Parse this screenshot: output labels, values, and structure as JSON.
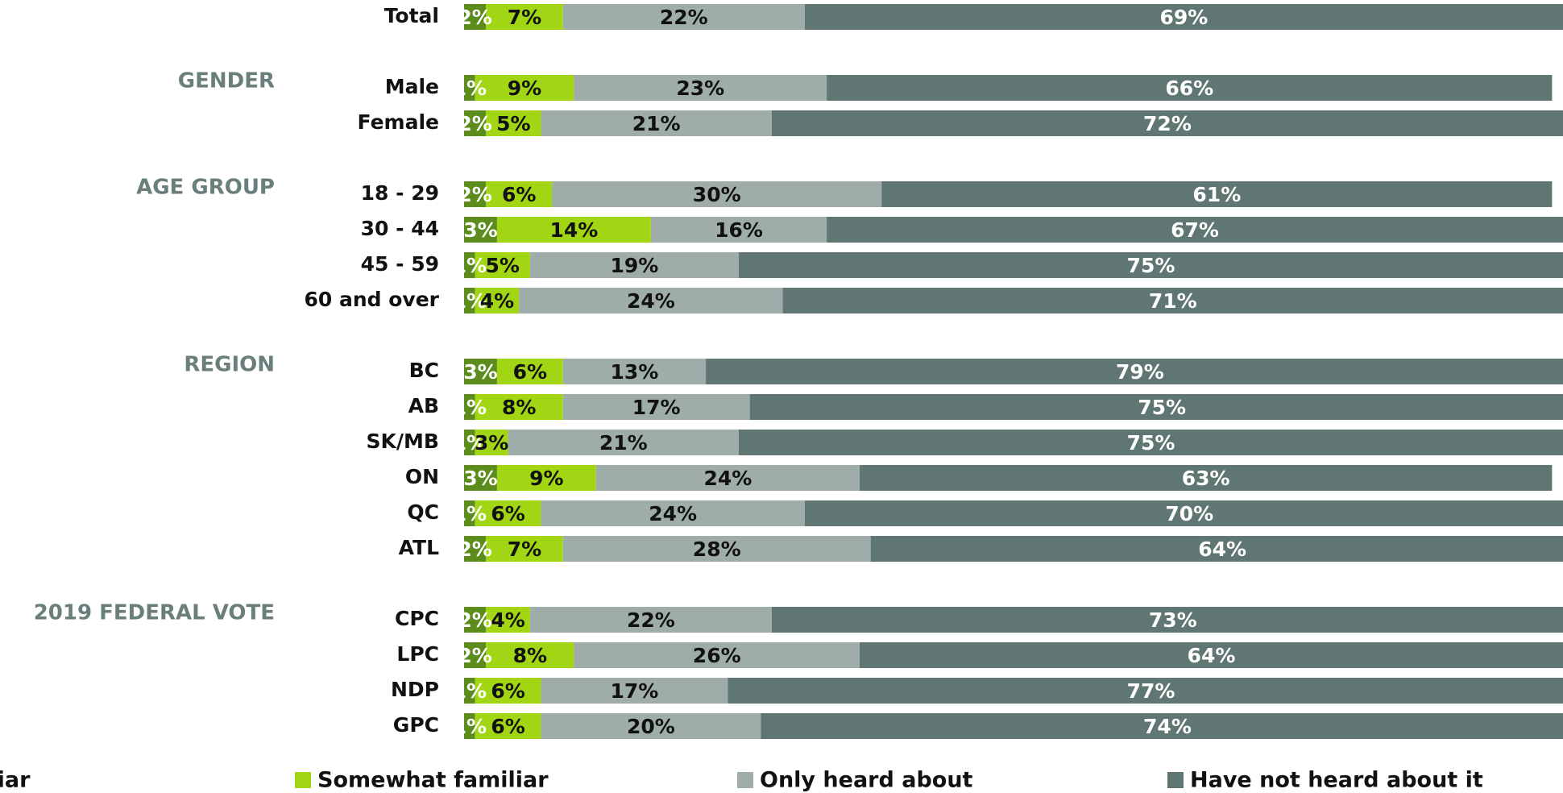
{
  "chart_data": {
    "type": "stacked-barh",
    "categories": [
      "Total",
      "Male",
      "Female",
      "18 - 29",
      "30 - 44",
      "45 - 59",
      "60 and over",
      "BC",
      "AB",
      "SK/MB",
      "ON",
      "QC",
      "ATL",
      "CPC",
      "LPC",
      "NDP",
      "GPC"
    ],
    "groups": [
      {
        "label": "GENDER",
        "first": 1
      },
      {
        "label": "AGE GROUP",
        "first": 3
      },
      {
        "label": "REGION",
        "first": 7
      },
      {
        "label": "2019 FEDERAL VOTE",
        "first": 13
      }
    ],
    "xlim": [
      0,
      100
    ],
    "series": [
      {
        "name": "Very familiar",
        "color": "#5b8c1c",
        "label_color": "#ffffff",
        "values": [
          2,
          1,
          2,
          2,
          3,
          1,
          1,
          3,
          1,
          1,
          3,
          1,
          2,
          2,
          2,
          1,
          1
        ],
        "value_labels": [
          "2%",
          "1%",
          "2%",
          "2%",
          "3%",
          "1%",
          "1%",
          "3%",
          "1%",
          "1%",
          "3%",
          "1%",
          "2%",
          "2%",
          "2%",
          "1%",
          "1%"
        ]
      },
      {
        "name": "Somewhat familiar",
        "color": "#a2d614",
        "label_color": "#111111",
        "values": [
          7,
          9,
          5,
          6,
          14,
          5,
          4,
          6,
          8,
          3,
          9,
          6,
          7,
          4,
          8,
          6,
          6
        ],
        "value_labels": [
          "7%",
          "9%",
          "5%",
          "6%",
          "14%",
          "5%",
          "4%",
          "6%",
          "8%",
          "3%",
          "9%",
          "6%",
          "7%",
          "4%",
          "8%",
          "6%",
          "6%"
        ]
      },
      {
        "name": "Only heard about",
        "color": "#9eacaa",
        "label_color": "#111111",
        "values": [
          22,
          23,
          21,
          30,
          16,
          19,
          24,
          13,
          17,
          21,
          24,
          24,
          28,
          22,
          26,
          17,
          20
        ],
        "value_labels": [
          "22%",
          "23%",
          "21%",
          "30%",
          "16%",
          "19%",
          "24%",
          "13%",
          "17%",
          "21%",
          "24%",
          "24%",
          "28%",
          "22%",
          "26%",
          "17%",
          "20%"
        ]
      },
      {
        "name": "Have not heard about it",
        "color": "#5f7672",
        "label_color": "#ffffff",
        "values": [
          69,
          66,
          72,
          61,
          67,
          75,
          71,
          79,
          75,
          75,
          63,
          70,
          64,
          73,
          64,
          77,
          74
        ],
        "value_labels": [
          "69%",
          "66%",
          "72%",
          "61%",
          "67%",
          "75%",
          "71%",
          "79%",
          "75%",
          "75%",
          "63%",
          "70%",
          "64%",
          "73%",
          "64%",
          "77%",
          "74%"
        ]
      }
    ]
  }
}
